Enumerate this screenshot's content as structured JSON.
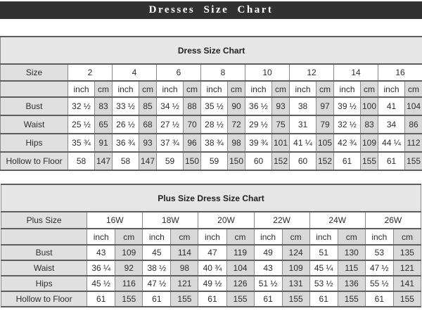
{
  "header": {
    "title": "Dresses Size Chart"
  },
  "colors": {
    "topbar_bg": "#313131",
    "topbar_text": "#ffffff",
    "title_row_bg": "#e6e6e6",
    "label_cell_bg": "#e0e0e0",
    "cm_cell_bg": "#d9d9d9",
    "inch_cell_bg": "#ffffff",
    "border_v": "#8a8a8a",
    "border_h": "#5e5e5e",
    "text": "#2d2d2d"
  },
  "chart_data": {
    "type": "table"
  },
  "tables": [
    {
      "title": "Dress Size Chart",
      "header_label": "Size",
      "sizes": [
        "2",
        "4",
        "6",
        "8",
        "10",
        "12",
        "14",
        "16"
      ],
      "units": [
        "inch",
        "cm"
      ],
      "rows": [
        {
          "label": "Bust",
          "inch": [
            "32 ½",
            "33 ½",
            "34 ½",
            "35 ½",
            "36 ½",
            "38",
            "39 ½",
            "41"
          ],
          "cm": [
            "83",
            "85",
            "88",
            "90",
            "93",
            "97",
            "100",
            "104"
          ]
        },
        {
          "label": "Waist",
          "inch": [
            "25 ½",
            "26 ½",
            "27 ½",
            "28 ½",
            "29 ½",
            "31",
            "32 ½",
            "34"
          ],
          "cm": [
            "65",
            "68",
            "70",
            "72",
            "75",
            "79",
            "83",
            "86"
          ]
        },
        {
          "label": "Hips",
          "inch": [
            "35 ¾",
            "36 ¾",
            "37 ¾",
            "38 ¾",
            "39 ¾",
            "41 ¼",
            "42 ¾",
            "44 ¼"
          ],
          "cm": [
            "91",
            "93",
            "96",
            "98",
            "101",
            "105",
            "109",
            "112"
          ]
        },
        {
          "label": "Hollow to Floor",
          "inch": [
            "58",
            "58",
            "59",
            "59",
            "60",
            "60",
            "61",
            "61"
          ],
          "cm": [
            "147",
            "147",
            "150",
            "150",
            "152",
            "152",
            "155",
            "155"
          ]
        }
      ]
    },
    {
      "title": "Plus Size Dress Size Chart",
      "header_label": "Plus Size",
      "sizes": [
        "16W",
        "18W",
        "20W",
        "22W",
        "24W",
        "26W"
      ],
      "units": [
        "inch",
        "cm"
      ],
      "rows": [
        {
          "label": "Bust",
          "inch": [
            "43",
            "45",
            "47",
            "49",
            "51",
            "53"
          ],
          "cm": [
            "109",
            "114",
            "119",
            "124",
            "130",
            "135"
          ]
        },
        {
          "label": "Waist",
          "inch": [
            "36 ¼",
            "38 ½",
            "40 ¾",
            "43",
            "45 ¼",
            "47 ½"
          ],
          "cm": [
            "92",
            "98",
            "104",
            "109",
            "115",
            "121"
          ]
        },
        {
          "label": "Hips",
          "inch": [
            "45 ½",
            "47 ½",
            "49 ½",
            "51 ½",
            "53 ½",
            "55 ½"
          ],
          "cm": [
            "116",
            "121",
            "126",
            "131",
            "136",
            "141"
          ]
        },
        {
          "label": "Hollow to Floor",
          "inch": [
            "61",
            "61",
            "61",
            "61",
            "61",
            "61"
          ],
          "cm": [
            "155",
            "155",
            "155",
            "155",
            "155",
            "155"
          ]
        }
      ]
    }
  ]
}
